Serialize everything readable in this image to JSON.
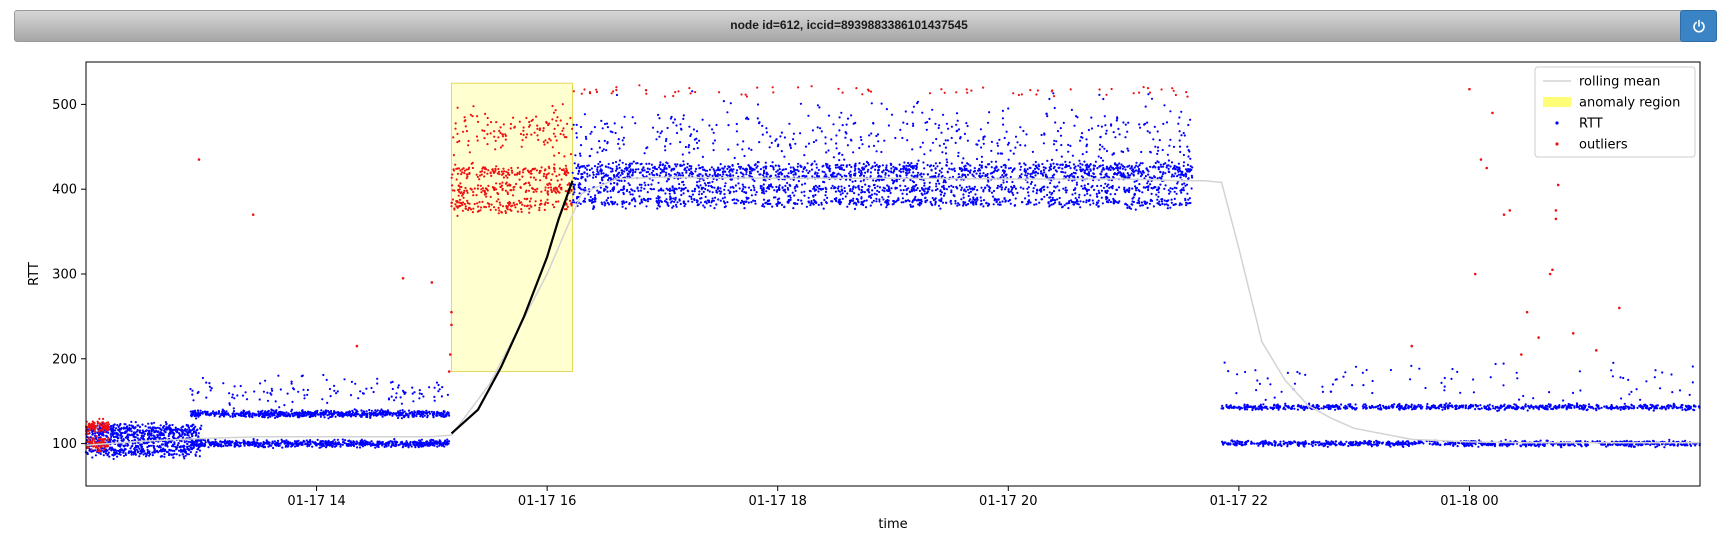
{
  "header": {
    "title": "node id=612, iccid=8939883386101437545",
    "power_icon": "power-icon"
  },
  "colors": {
    "rtt": "#0000ff",
    "outliers": "#ee1111",
    "rolling_mean": "#d3d3d3",
    "anomaly": "#ffff77",
    "trend": "#000000",
    "power_button": "#3a83c4"
  },
  "chart_data": {
    "type": "scatter",
    "xlabel": "time",
    "ylabel": "RTT",
    "x_ticks": [
      "01-17 14",
      "01-17 16",
      "01-17 18",
      "01-17 20",
      "01-17 22",
      "01-18 00"
    ],
    "x_tick_hours": [
      14,
      16,
      18,
      20,
      22,
      24
    ],
    "y_ticks": [
      100,
      200,
      300,
      400,
      500
    ],
    "xlim_hours": [
      12.0,
      26.0
    ],
    "ylim": [
      50,
      550
    ],
    "legend": [
      "rolling mean",
      "anomaly region",
      "RTT",
      "outliers"
    ],
    "legend_position": "top-right",
    "anomaly_region": {
      "x_start_hour": 15.17,
      "x_end_hour": 16.22,
      "y_range": [
        185,
        525
      ]
    },
    "rolling_mean": {
      "x_hours": [
        12.0,
        12.5,
        13.0,
        13.5,
        14.0,
        14.5,
        15.0,
        15.17,
        15.5,
        16.0,
        16.3,
        16.6,
        17.0,
        18.0,
        19.0,
        20.0,
        20.5,
        21.0,
        21.5,
        21.7,
        21.85,
        22.0,
        22.2,
        22.4,
        22.6,
        22.8,
        23.0,
        23.5,
        24.0,
        24.5,
        25.0,
        25.5,
        26.0
      ],
      "y": [
        98,
        103,
        106,
        108,
        108,
        108,
        108,
        110,
        170,
        300,
        395,
        412,
        414,
        413,
        413,
        412,
        412,
        412,
        410,
        410,
        408,
        330,
        220,
        175,
        145,
        130,
        118,
        105,
        102,
        101,
        101,
        101,
        101
      ]
    },
    "trend": {
      "x_hours": [
        15.17,
        15.4,
        15.6,
        15.8,
        16.0,
        16.1,
        16.22
      ],
      "y": [
        112,
        140,
        190,
        250,
        320,
        365,
        410
      ]
    },
    "rtt_clusters": [
      {
        "x_range": [
          12.0,
          13.0
        ],
        "y_levels": [
          90,
          100,
          110,
          118
        ],
        "spread": 10,
        "count": 900
      },
      {
        "x_range": [
          12.9,
          15.15
        ],
        "y_levels": [
          100,
          135
        ],
        "spread": 6,
        "count": 1400
      },
      {
        "x_range": [
          12.9,
          15.15
        ],
        "y_levels": [
          160
        ],
        "spread": 30,
        "count": 120
      },
      {
        "x_range": [
          16.22,
          21.6
        ],
        "y_levels": [
          385,
          400,
          415,
          425
        ],
        "spread": 10,
        "count": 2600
      },
      {
        "x_range": [
          16.22,
          21.6
        ],
        "y_levels": [
          460
        ],
        "spread": 60,
        "count": 500
      },
      {
        "x_range": [
          21.85,
          26.0
        ],
        "y_levels": [
          100,
          143
        ],
        "spread": 5,
        "count": 1600
      },
      {
        "x_range": [
          21.85,
          26.0
        ],
        "y_levels": [
          170
        ],
        "spread": 35,
        "count": 90
      }
    ],
    "outlier_clusters": [
      {
        "x_range": [
          12.0,
          12.2
        ],
        "y_levels": [
          100,
          120
        ],
        "spread": 12,
        "count": 180
      },
      {
        "x_range": [
          15.17,
          16.22
        ],
        "y_levels": [
          380,
          400,
          420
        ],
        "spread": 12,
        "count": 420
      },
      {
        "x_range": [
          15.17,
          16.22
        ],
        "y_levels": [
          470
        ],
        "spread": 40,
        "count": 120
      },
      {
        "x_range": [
          16.22,
          21.6
        ],
        "y_levels": [
          515
        ],
        "spread": 9,
        "count": 70
      }
    ],
    "outlier_points": [
      [
        12.98,
        435
      ],
      [
        13.45,
        370
      ],
      [
        14.35,
        215
      ],
      [
        14.75,
        295
      ],
      [
        15.0,
        290
      ],
      [
        15.15,
        185
      ],
      [
        15.16,
        205
      ],
      [
        15.17,
        240
      ],
      [
        15.17,
        255
      ],
      [
        24.0,
        518
      ],
      [
        24.05,
        300
      ],
      [
        24.1,
        435
      ],
      [
        24.15,
        425
      ],
      [
        24.2,
        490
      ],
      [
        24.3,
        370
      ],
      [
        24.35,
        375
      ],
      [
        24.45,
        205
      ],
      [
        24.6,
        225
      ],
      [
        24.7,
        300
      ],
      [
        24.72,
        305
      ],
      [
        24.75,
        365
      ],
      [
        24.75,
        375
      ],
      [
        24.77,
        405
      ],
      [
        24.9,
        230
      ],
      [
        25.1,
        210
      ],
      [
        25.3,
        260
      ],
      [
        23.5,
        215
      ],
      [
        24.5,
        255
      ]
    ]
  }
}
